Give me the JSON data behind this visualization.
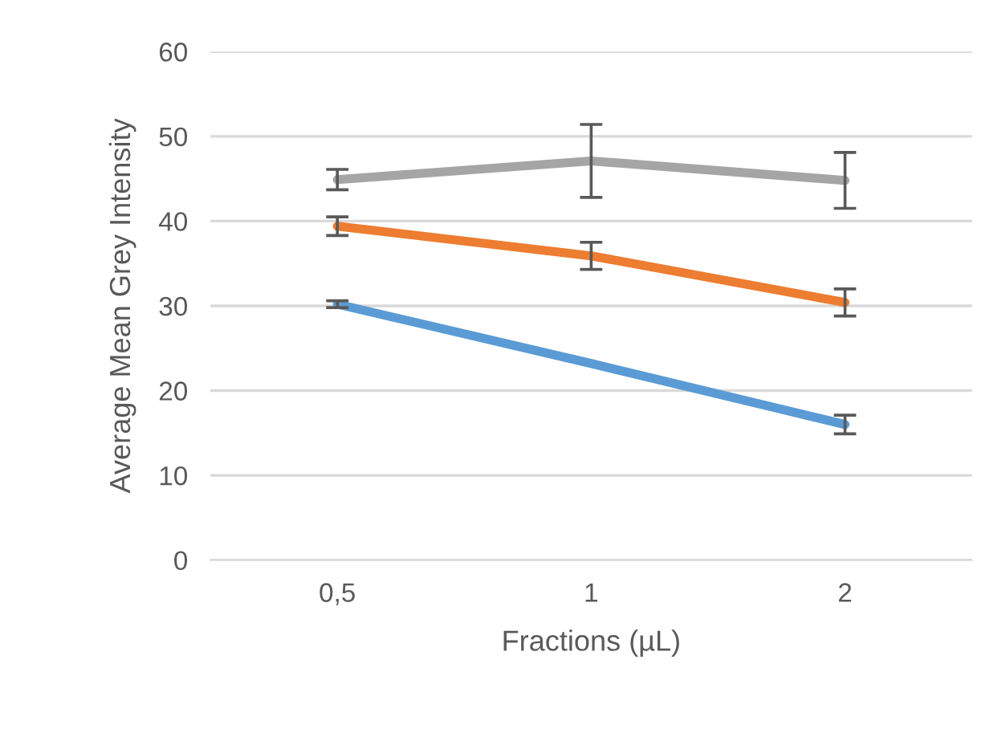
{
  "chart_data": {
    "type": "line",
    "xlabel": "Fractions (µL)",
    "ylabel": "Average Mean Grey Intensity",
    "categories": [
      "0,5",
      "1",
      "2"
    ],
    "series": [
      {
        "color": "#5b9bd5",
        "values": [
          30.2,
          23.2,
          16.0
        ],
        "errors": [
          0.4,
          null,
          1.1
        ]
      },
      {
        "color": "#ed7d31",
        "values": [
          39.4,
          35.9,
          30.4
        ],
        "errors": [
          1.1,
          1.6,
          1.6
        ]
      },
      {
        "color": "#a5a5a5",
        "values": [
          44.9,
          47.1,
          44.8
        ],
        "errors": [
          1.2,
          4.3,
          3.3
        ]
      }
    ],
    "ylim": [
      0,
      60
    ],
    "yticks": [
      0,
      10,
      20,
      30,
      40,
      50,
      60
    ],
    "grid": "y",
    "marker": "none",
    "line_style": "solid"
  }
}
